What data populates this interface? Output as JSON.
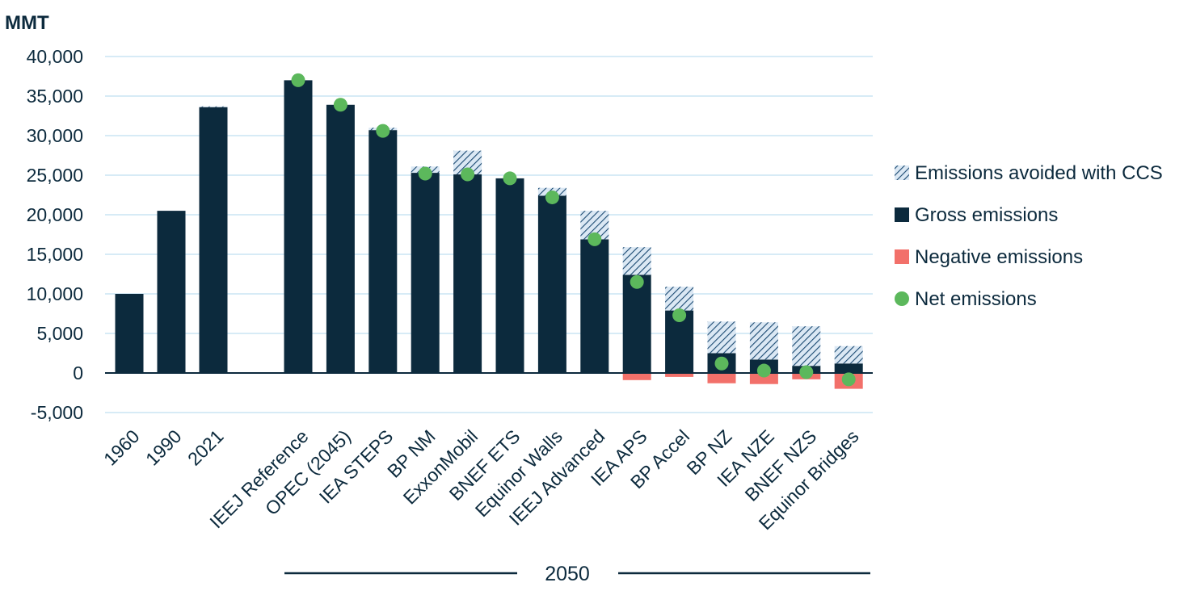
{
  "chart_data": {
    "type": "bar",
    "ylabel": "MMT",
    "ylim": [
      -5000,
      40000
    ],
    "yticks": [
      "40,000",
      "35,000",
      "30,000",
      "25,000",
      "20,000",
      "15,000",
      "10,000",
      "5,000",
      "0",
      "-5,000"
    ],
    "ytick_values": [
      40000,
      35000,
      30000,
      25000,
      20000,
      15000,
      10000,
      5000,
      0,
      -5000
    ],
    "grid": true,
    "legend_position": "right",
    "group_label": "2050",
    "categories": [
      "1960",
      "1990",
      "2021",
      "IEEJ Reference",
      "OPEC (2045)",
      "IEA STEPS",
      "BP NM",
      "ExxonMobil",
      "BNEF ETS",
      "Equinor Walls",
      "IEEJ Advanced",
      "IEA APS",
      "BP Accel",
      "BP NZ",
      "IEA NZE",
      "BNEF NZS",
      "Equinor Bridges"
    ],
    "series": [
      {
        "name": "Emissions avoided with CCS",
        "color": "#a9c8e4",
        "values": [
          0,
          0,
          100,
          0,
          0,
          300,
          800,
          3000,
          0,
          1000,
          3600,
          3500,
          3000,
          4000,
          4700,
          5000,
          2200
        ]
      },
      {
        "name": "Gross emissions",
        "color": "#0c2a3d",
        "values": [
          10000,
          20500,
          33600,
          37000,
          33900,
          30700,
          25300,
          25100,
          24600,
          22400,
          16900,
          12400,
          7900,
          2500,
          1700,
          900,
          1200
        ]
      },
      {
        "name": "Negative emissions",
        "color": "#f2706a",
        "values": [
          0,
          0,
          0,
          0,
          0,
          0,
          0,
          0,
          0,
          0,
          0,
          -900,
          -500,
          -1300,
          -1400,
          -800,
          -2000
        ]
      },
      {
        "name": "Net emissions",
        "color": "#5cb85c",
        "values": [
          null,
          null,
          null,
          37000,
          33900,
          30600,
          25200,
          25100,
          24600,
          22200,
          16900,
          11500,
          7300,
          1200,
          300,
          100,
          -800
        ]
      }
    ]
  }
}
